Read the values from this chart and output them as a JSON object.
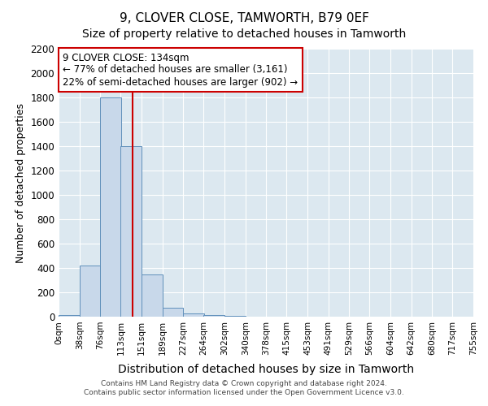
{
  "title": "9, CLOVER CLOSE, TAMWORTH, B79 0EF",
  "subtitle": "Size of property relative to detached houses in Tamworth",
  "xlabel": "Distribution of detached houses by size in Tamworth",
  "ylabel": "Number of detached properties",
  "bin_edges": [
    0,
    38,
    76,
    113,
    151,
    189,
    227,
    264,
    302,
    340,
    378,
    415,
    453,
    491,
    529,
    566,
    604,
    642,
    680,
    717,
    755
  ],
  "bin_labels": [
    "0sqm",
    "38sqm",
    "76sqm",
    "113sqm",
    "151sqm",
    "189sqm",
    "227sqm",
    "264sqm",
    "302sqm",
    "340sqm",
    "378sqm",
    "415sqm",
    "453sqm",
    "491sqm",
    "529sqm",
    "566sqm",
    "604sqm",
    "642sqm",
    "680sqm",
    "717sqm",
    "755sqm"
  ],
  "bar_values": [
    15,
    420,
    1800,
    1400,
    350,
    75,
    30,
    15,
    5,
    2,
    1,
    0,
    0,
    0,
    0,
    0,
    0,
    0,
    0,
    0
  ],
  "bar_color": "#c8d8ea",
  "bar_edge_color": "#6090bb",
  "vline_x": 134,
  "vline_color": "#cc0000",
  "annotation_line1": "9 CLOVER CLOSE: 134sqm",
  "annotation_line2": "← 77% of detached houses are smaller (3,161)",
  "annotation_line3": "22% of semi-detached houses are larger (902) →",
  "annotation_box_color": "#ffffff",
  "annotation_box_edge": "#cc0000",
  "ylim": [
    0,
    2200
  ],
  "yticks": [
    0,
    200,
    400,
    600,
    800,
    1000,
    1200,
    1400,
    1600,
    1800,
    2000,
    2200
  ],
  "bg_color": "#dce8f0",
  "grid_color": "#ffffff",
  "footer1": "Contains HM Land Registry data © Crown copyright and database right 2024.",
  "footer2": "Contains public sector information licensed under the Open Government Licence v3.0.",
  "title_fontsize": 11,
  "subtitle_fontsize": 10,
  "ylabel_fontsize": 9,
  "xlabel_fontsize": 10
}
